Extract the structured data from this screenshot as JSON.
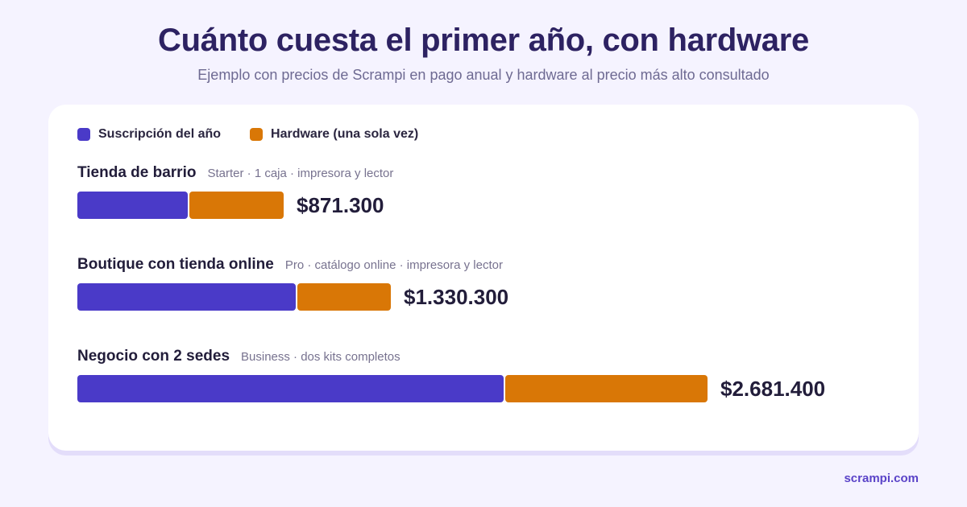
{
  "title": "Cuánto cuesta el primer año, con hardware",
  "subtitle": "Ejemplo con precios de Scrampi en pago anual y hardware al precio más alto consultado",
  "legend": {
    "subscription": "Suscripción del año",
    "hardware": "Hardware (una sola vez)"
  },
  "colors": {
    "subscription": "#4a3ac8",
    "hardware": "#d97706",
    "title": "#2d2262",
    "background": "#f5f3ff"
  },
  "footer": "scrampi.com",
  "rows": [
    {
      "name": "Tienda de barrio",
      "detail": "Starter · 1 caja · impresora y lector",
      "total_label": "$871.300"
    },
    {
      "name": "Boutique con tienda online",
      "detail": "Pro · catálogo online · impresora y lector",
      "total_label": "$1.330.300"
    },
    {
      "name": "Negocio con 2 sedes",
      "detail": "Business · dos kits completos",
      "total_label": "$2.681.400"
    }
  ],
  "chart_data": {
    "type": "bar",
    "orientation": "horizontal",
    "stacked": true,
    "title": "Cuánto cuesta el primer año, con hardware",
    "subtitle": "Ejemplo con precios de Scrampi en pago anual y hardware al precio más alto consultado",
    "categories": [
      "Tienda de barrio",
      "Boutique con tienda online",
      "Negocio con 2 sedes"
    ],
    "series": [
      {
        "name": "Suscripción del año",
        "color": "#4a3ac8",
        "values": [
          470000,
          930000,
          1820000
        ]
      },
      {
        "name": "Hardware (una sola vez)",
        "color": "#d97706",
        "values": [
          401300,
          400300,
          861400
        ]
      }
    ],
    "totals": [
      871300,
      1330300,
      2681400
    ],
    "xlim": [
      0,
      2681400
    ],
    "legend_position": "top-left",
    "grid": false
  }
}
